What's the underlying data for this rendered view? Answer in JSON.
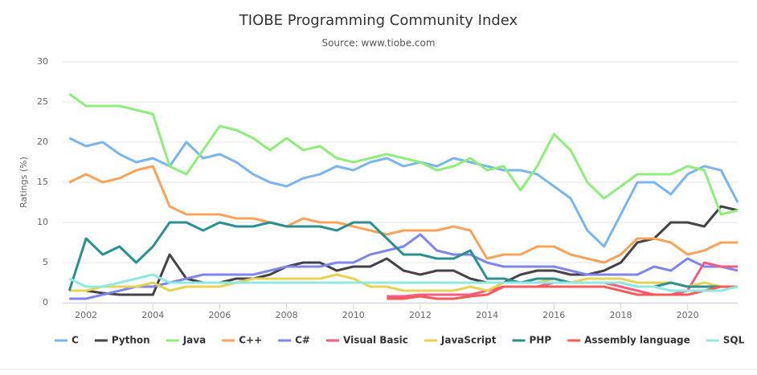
{
  "chart_data": {
    "type": "line",
    "title": "TIOBE Programming Community Index",
    "subtitle": "Source: www.tiobe.com",
    "y_label": "Ratings (%)",
    "x": [
      2001.5,
      2002,
      2002.5,
      2003,
      2003.5,
      2004,
      2004.5,
      2005,
      2005.5,
      2006,
      2006.5,
      2007,
      2007.5,
      2008,
      2008.5,
      2009,
      2009.5,
      2010,
      2010.5,
      2011,
      2011.5,
      2012,
      2012.5,
      2013,
      2013.5,
      2014,
      2014.5,
      2015,
      2015.5,
      2016,
      2016.5,
      2017,
      2017.5,
      2018,
      2018.5,
      2019,
      2019.5,
      2020,
      2020.5,
      2021,
      2021.5
    ],
    "xlim": [
      2001.3,
      2021.5
    ],
    "xticks": [
      2002,
      2004,
      2006,
      2008,
      2010,
      2012,
      2014,
      2016,
      2018,
      2020
    ],
    "ylim": [
      0,
      30
    ],
    "yticks": [
      0,
      5,
      10,
      15,
      20,
      25,
      30
    ],
    "grid": true,
    "legend": "bottom",
    "series": [
      {
        "name": "C",
        "color": "#7cb5ec",
        "values": [
          20.5,
          19.5,
          20,
          18.5,
          17.5,
          18,
          17,
          20,
          18,
          18.5,
          17.5,
          16,
          15,
          14.5,
          15.5,
          16,
          17,
          16.5,
          17.5,
          18,
          17,
          17.5,
          17,
          18,
          17.5,
          17,
          16.5,
          16.5,
          16,
          14.5,
          13,
          9,
          7,
          11,
          15,
          15,
          13.5,
          16,
          17,
          16.5,
          12.5
        ]
      },
      {
        "name": "Python",
        "color": "#434348",
        "values": [
          1.5,
          1.5,
          1.2,
          1,
          1,
          1,
          6,
          3,
          2.5,
          2.5,
          3,
          3,
          3.5,
          4.5,
          5,
          5,
          4,
          4.5,
          4.5,
          5.5,
          4,
          3.5,
          4,
          4,
          3,
          2.5,
          2.5,
          3.5,
          4,
          4,
          3.5,
          3.5,
          4,
          5,
          7.5,
          8,
          10,
          10,
          9.5,
          12,
          11.5
        ]
      },
      {
        "name": "Java",
        "color": "#90ed7d",
        "values": [
          26,
          24.5,
          24.5,
          24.5,
          24,
          23.5,
          17,
          16,
          19,
          22,
          21.5,
          20.5,
          19,
          20.5,
          19,
          19.5,
          18,
          17.5,
          18,
          18.5,
          18,
          17.5,
          16.5,
          17,
          18,
          16.5,
          17,
          14,
          17,
          21,
          19,
          15,
          13,
          14.5,
          16,
          16,
          16,
          17,
          16.5,
          11,
          11.5
        ]
      },
      {
        "name": "C++",
        "color": "#f7a35c",
        "values": [
          15,
          16,
          15,
          15.5,
          16.5,
          17,
          12,
          11,
          11,
          11,
          10.5,
          10.5,
          10,
          9.5,
          10.5,
          10,
          10,
          9.5,
          9,
          8.5,
          9,
          9,
          9,
          9.5,
          9,
          5.5,
          6,
          6,
          7,
          7,
          6,
          5.5,
          5,
          6,
          8,
          8,
          7.5,
          6,
          6.5,
          7.5,
          7.5
        ]
      },
      {
        "name": "C#",
        "color": "#8085e9",
        "values": [
          0.5,
          0.5,
          1,
          1.5,
          2,
          2,
          2.5,
          3,
          3.5,
          3.5,
          3.5,
          3.5,
          4,
          4.5,
          4.5,
          4.5,
          5,
          5,
          6,
          6.5,
          7,
          8.5,
          6.5,
          6,
          6,
          5,
          4.5,
          4.5,
          4.5,
          4.5,
          4,
          3.5,
          3.5,
          3.5,
          3.5,
          4.5,
          4,
          5.5,
          4.5,
          4.5,
          4
        ]
      },
      {
        "name": "Visual Basic",
        "color": "#f15c80",
        "values": [
          null,
          null,
          null,
          null,
          null,
          null,
          null,
          null,
          null,
          null,
          null,
          null,
          null,
          null,
          null,
          null,
          null,
          null,
          null,
          0.8,
          0.8,
          1,
          1,
          1,
          1,
          1.5,
          2,
          2,
          2,
          2.5,
          2.5,
          2.5,
          2.5,
          2,
          1.5,
          1,
          1,
          1.5,
          5,
          4.5,
          4.5
        ]
      },
      {
        "name": "JavaScript",
        "color": "#e4d354",
        "values": [
          1.5,
          1.5,
          2,
          2,
          2,
          2.5,
          1.5,
          2,
          2,
          2,
          2.5,
          3,
          3,
          3,
          3,
          3,
          3.5,
          3,
          2,
          2,
          1.5,
          1.5,
          1.5,
          1.5,
          2,
          1.5,
          2.5,
          2.5,
          2.5,
          3,
          2.5,
          3,
          3,
          3,
          2.5,
          2.5,
          2.5,
          2,
          2.5,
          2,
          2
        ]
      },
      {
        "name": "PHP",
        "color": "#2b908f",
        "values": [
          1.5,
          8,
          6,
          7,
          5,
          7,
          10,
          10,
          9,
          10,
          9.5,
          9.5,
          10,
          9.5,
          9.5,
          9.5,
          9,
          10,
          10,
          8,
          6,
          6,
          5.5,
          5.5,
          6.5,
          3,
          3,
          2.5,
          3,
          3,
          2.5,
          2.5,
          2.5,
          2.5,
          2,
          2,
          2.5,
          2,
          2,
          2,
          2
        ]
      },
      {
        "name": "Assembly language",
        "color": "#f45b5b",
        "values": [
          null,
          null,
          null,
          null,
          null,
          null,
          null,
          null,
          null,
          null,
          null,
          null,
          null,
          null,
          null,
          null,
          null,
          null,
          null,
          0.5,
          0.5,
          0.8,
          0.5,
          0.5,
          0.8,
          1,
          2,
          2,
          2,
          2,
          2,
          2,
          2,
          1.5,
          1,
          1,
          1,
          1,
          1.5,
          2,
          2
        ]
      },
      {
        "name": "SQL",
        "color": "#91e8e1",
        "values": [
          3,
          2,
          2,
          2.5,
          3,
          3.5,
          2.5,
          2.5,
          2.5,
          2.5,
          2.5,
          2.5,
          2.5,
          2.5,
          2.5,
          2.5,
          2.5,
          2.5,
          2.5,
          2.5,
          2.5,
          2.5,
          2.5,
          2.5,
          2.5,
          2.5,
          2.5,
          2.5,
          2.5,
          2.5,
          2.5,
          2.5,
          2.5,
          2.5,
          2,
          2,
          1.5,
          1.5,
          1.5,
          1.5,
          2
        ]
      }
    ]
  }
}
